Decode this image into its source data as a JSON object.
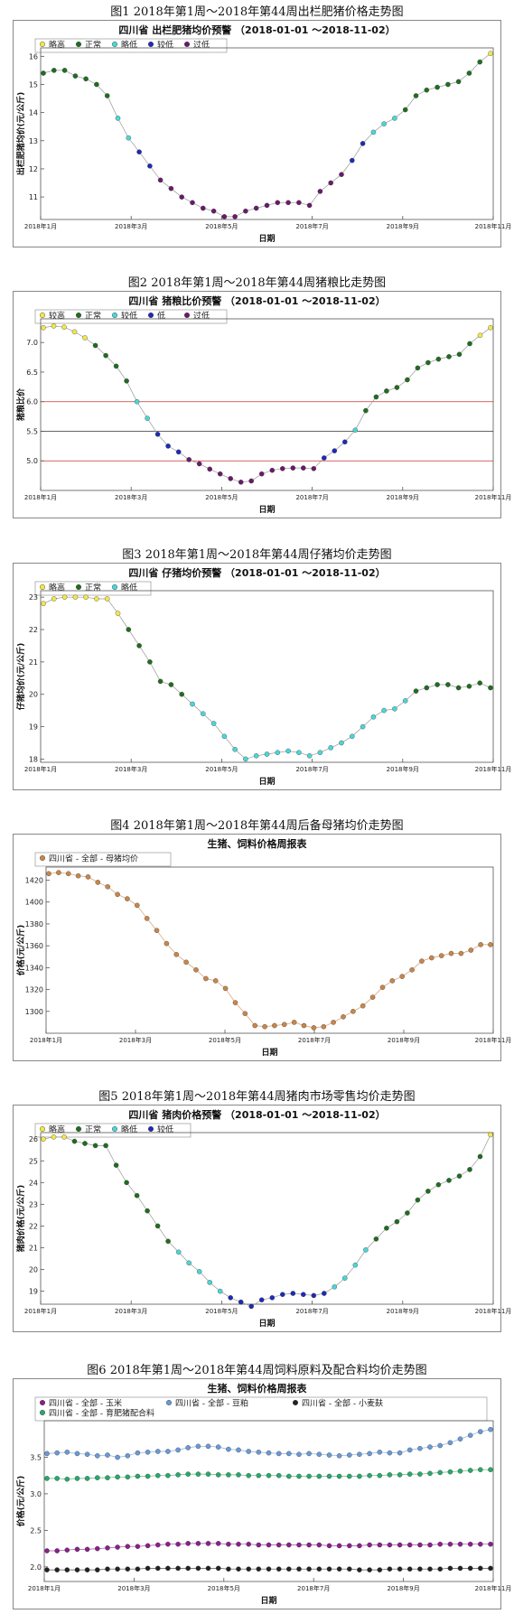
{
  "charts": [
    {
      "caption": "图1  2018年第1周～2018年第44周出栏肥猪价格走势图",
      "title": "四川省 出栏肥猪均价预警 （2018-01-01 ～2018-11-02）",
      "ylabel": "出栏肥猪均价(元/公斤)",
      "xlabel": "日期",
      "xticks": [
        "2018年1月",
        "2018年3月",
        "2018年5月",
        "2018年7月",
        "2018年9月",
        "2018年11月"
      ],
      "yticks": [
        "11",
        "12",
        "13",
        "14",
        "15",
        "16"
      ],
      "legend": [
        {
          "name": "略高",
          "color": "#f2e84a"
        },
        {
          "name": "正常",
          "color": "#1f6e1f"
        },
        {
          "name": "略低",
          "color": "#4ad6d6"
        },
        {
          "name": "较低",
          "color": "#1f2ab8"
        },
        {
          "name": "过低",
          "color": "#6a1a6a"
        }
      ]
    },
    {
      "caption": "图2  2018年第1周～2018年第44周猪粮比走势图",
      "title": "四川省 猪粮比价预警 （2018-01-01 ～2018-11-02）",
      "ylabel": "猪粮比价",
      "xlabel": "日期",
      "xticks": [
        "2018年1月",
        "2018年3月",
        "2018年5月",
        "2018年7月",
        "2018年9月",
        "2018年11月"
      ],
      "yticks": [
        "5.0",
        "5.5",
        "6.0",
        "6.5",
        "7.0"
      ],
      "legend": [
        {
          "name": "较高",
          "color": "#f2e84a"
        },
        {
          "name": "正常",
          "color": "#1f6e1f"
        },
        {
          "name": "较低",
          "color": "#4ad6d6"
        },
        {
          "name": "低",
          "color": "#1f2ab8"
        },
        {
          "name": "过低",
          "color": "#6a1a6a"
        }
      ]
    },
    {
      "caption": "图3  2018年第1周～2018年第44周仔猪均价走势图",
      "title": "四川省 仔猪均价预警 （2018-01-01 ～2018-11-02）",
      "ylabel": "仔猪均价(元/公斤)",
      "xlabel": "日期",
      "xticks": [
        "2018年1月",
        "2018年3月",
        "2018年5月",
        "2018年7月",
        "2018年9月",
        "2018年11月"
      ],
      "yticks": [
        "18",
        "19",
        "20",
        "21",
        "22",
        "23"
      ],
      "legend": [
        {
          "name": "略高",
          "color": "#f2e84a"
        },
        {
          "name": "正常",
          "color": "#1f6e1f"
        },
        {
          "name": "略低",
          "color": "#4ad6d6"
        }
      ]
    },
    {
      "caption": "图4  2018年第1周～2018年第44周后备母猪均价走势图",
      "title": "生猪、饲料价格周报表",
      "ylabel": "价格(元/公斤)",
      "xlabel": "日期",
      "xticks": [
        "2018年1月",
        "2018年3月",
        "2018年5月",
        "2018年7月",
        "2018年9月",
        "2018年11月"
      ],
      "yticks": [
        "1300",
        "1320",
        "1340",
        "1360",
        "1380",
        "1400",
        "1420"
      ],
      "legend": [
        {
          "name": "四川省 - 全部 - 母猪均价",
          "color": "#c8864a"
        }
      ]
    },
    {
      "caption": "图5  2018年第1周～2018年第44周猪肉市场零售均价走势图",
      "title": "四川省 猪肉价格预警 （2018-01-01 ～2018-11-02）",
      "ylabel": "猪肉价格(元/公斤)",
      "xlabel": "日期",
      "xticks": [
        "2018年1月",
        "2018年3月",
        "2018年5月",
        "2018年7月",
        "2018年9月",
        "2018年11月"
      ],
      "yticks": [
        "19",
        "20",
        "21",
        "22",
        "23",
        "24",
        "25",
        "26"
      ],
      "legend": [
        {
          "name": "略高",
          "color": "#f2e84a"
        },
        {
          "name": "正常",
          "color": "#1f6e1f"
        },
        {
          "name": "略低",
          "color": "#4ad6d6"
        },
        {
          "name": "较低",
          "color": "#1f2ab8"
        }
      ]
    },
    {
      "caption": "图6  2018年第1周～2018年第44周饲料原料及配合料均价走势图",
      "title": "生猪、饲料价格周报表",
      "ylabel": "价格(元/公斤)",
      "xlabel": "日期",
      "xticks": [
        "2018年1月",
        "2018年3月",
        "2018年5月",
        "2018年7月",
        "2018年9月",
        "2018年11月"
      ],
      "yticks": [
        "2.0",
        "2.5",
        "3.0",
        "3.5"
      ],
      "legend": [
        {
          "name": "四川省 - 全部 - 玉米",
          "color": "#8a1f8a"
        },
        {
          "name": "四川省 - 全部 - 豆粕",
          "color": "#6a9ad6"
        },
        {
          "name": "四川省 - 全部 - 小麦麸",
          "color": "#222222"
        },
        {
          "name": "四川省 - 全部 - 育肥猪配合料",
          "color": "#2aa86a"
        }
      ]
    }
  ],
  "chart_data": [
    {
      "type": "scatter",
      "ylim": [
        10.2,
        16.3
      ],
      "y": [
        15.4,
        15.5,
        15.5,
        15.3,
        15.2,
        15.0,
        14.6,
        13.8,
        13.1,
        12.6,
        12.1,
        11.6,
        11.3,
        11.0,
        10.8,
        10.6,
        10.5,
        10.3,
        10.3,
        10.5,
        10.6,
        10.7,
        10.8,
        10.8,
        10.8,
        10.7,
        11.2,
        11.5,
        11.8,
        12.3,
        12.9,
        13.3,
        13.6,
        13.8,
        14.1,
        14.6,
        14.8,
        14.9,
        15.0,
        15.1,
        15.4,
        15.8,
        16.1
      ],
      "levels": [
        "g",
        "g",
        "g",
        "g",
        "g",
        "g",
        "g",
        "c",
        "c",
        "b",
        "b",
        "p",
        "p",
        "p",
        "p",
        "p",
        "p",
        "p",
        "p",
        "p",
        "p",
        "p",
        "p",
        "p",
        "p",
        "p",
        "p",
        "p",
        "p",
        "b",
        "b",
        "c",
        "c",
        "c",
        "g",
        "g",
        "g",
        "g",
        "g",
        "g",
        "g",
        "g",
        "y"
      ]
    },
    {
      "type": "scatter",
      "ylim": [
        4.5,
        7.4
      ],
      "reference_lines": [
        {
          "y": 6.0,
          "color": "#cc3333"
        },
        {
          "y": 5.5,
          "color": "#333333"
        },
        {
          "y": 5.0,
          "color": "#cc3333"
        }
      ],
      "y": [
        7.25,
        7.28,
        7.26,
        7.18,
        7.08,
        6.95,
        6.78,
        6.6,
        6.35,
        6.0,
        5.72,
        5.45,
        5.25,
        5.15,
        5.02,
        4.95,
        4.86,
        4.78,
        4.7,
        4.64,
        4.66,
        4.78,
        4.84,
        4.87,
        4.88,
        4.88,
        4.87,
        5.05,
        5.17,
        5.32,
        5.52,
        5.85,
        6.08,
        6.18,
        6.24,
        6.37,
        6.57,
        6.66,
        6.72,
        6.76,
        6.8,
        6.98,
        7.12,
        7.25
      ],
      "levels": [
        "y",
        "y",
        "y",
        "y",
        "y",
        "g",
        "g",
        "g",
        "g",
        "c",
        "c",
        "b",
        "b",
        "b",
        "p",
        "p",
        "p",
        "p",
        "p",
        "p",
        "p",
        "p",
        "p",
        "p",
        "p",
        "p",
        "p",
        "b",
        "b",
        "b",
        "c",
        "g",
        "g",
        "g",
        "g",
        "g",
        "g",
        "g",
        "g",
        "g",
        "g",
        "g",
        "y",
        "y"
      ]
    },
    {
      "type": "scatter",
      "ylim": [
        17.9,
        23.2
      ],
      "y": [
        22.8,
        22.95,
        23.0,
        23.0,
        23.0,
        22.95,
        22.95,
        22.5,
        22.0,
        21.5,
        21.0,
        20.4,
        20.3,
        20.0,
        19.7,
        19.4,
        19.1,
        18.7,
        18.3,
        18.0,
        18.1,
        18.15,
        18.2,
        18.25,
        18.2,
        18.1,
        18.2,
        18.35,
        18.5,
        18.7,
        19.0,
        19.3,
        19.5,
        19.55,
        19.8,
        20.1,
        20.2,
        20.3,
        20.3,
        20.2,
        20.25,
        20.35,
        20.2
      ],
      "levels": [
        "y",
        "y",
        "y",
        "y",
        "y",
        "y",
        "y",
        "y",
        "g",
        "g",
        "g",
        "g",
        "g",
        "g",
        "c",
        "c",
        "c",
        "c",
        "c",
        "c",
        "c",
        "c",
        "c",
        "c",
        "c",
        "c",
        "c",
        "c",
        "c",
        "c",
        "c",
        "c",
        "c",
        "c",
        "c",
        "g",
        "g",
        "g",
        "g",
        "g",
        "g",
        "g",
        "g"
      ]
    },
    {
      "type": "scatter",
      "ylim": [
        1280,
        1432
      ],
      "series": [
        {
          "name": "四川省 - 全部 - 母猪均价",
          "y": [
            1426,
            1427,
            1426,
            1424,
            1423,
            1418,
            1414,
            1407,
            1403,
            1397,
            1385,
            1374,
            1362,
            1352,
            1345,
            1338,
            1330,
            1328,
            1321,
            1308,
            1298,
            1287,
            1286,
            1287,
            1288,
            1290,
            1287,
            1285,
            1286,
            1290,
            1295,
            1300,
            1305,
            1313,
            1322,
            1328,
            1332,
            1338,
            1346,
            1349,
            1351,
            1353,
            1353,
            1356,
            1361,
            1361
          ]
        }
      ]
    },
    {
      "type": "scatter",
      "ylim": [
        18.4,
        26.3
      ],
      "y": [
        26.0,
        26.1,
        26.1,
        25.9,
        25.8,
        25.7,
        25.7,
        24.8,
        24.0,
        23.4,
        22.7,
        22.0,
        21.3,
        20.8,
        20.3,
        19.9,
        19.4,
        19.0,
        18.7,
        18.5,
        18.3,
        18.6,
        18.7,
        18.85,
        18.9,
        18.85,
        18.8,
        18.9,
        19.2,
        19.6,
        20.2,
        20.9,
        21.4,
        21.9,
        22.2,
        22.6,
        23.2,
        23.6,
        23.9,
        24.1,
        24.3,
        24.6,
        25.2,
        26.2
      ],
      "levels": [
        "y",
        "y",
        "y",
        "g",
        "g",
        "g",
        "g",
        "g",
        "g",
        "g",
        "g",
        "g",
        "g",
        "c",
        "c",
        "c",
        "c",
        "c",
        "b",
        "b",
        "b",
        "b",
        "b",
        "b",
        "b",
        "b",
        "b",
        "b",
        "c",
        "c",
        "c",
        "c",
        "g",
        "g",
        "g",
        "g",
        "g",
        "g",
        "g",
        "g",
        "g",
        "g",
        "g",
        "y"
      ]
    },
    {
      "type": "scatter",
      "ylim": [
        1.8,
        4.0
      ],
      "series": [
        {
          "name": "四川省 - 全部 - 豆粕",
          "y": [
            3.55,
            3.56,
            3.57,
            3.55,
            3.54,
            3.52,
            3.53,
            3.5,
            3.52,
            3.56,
            3.57,
            3.58,
            3.58,
            3.6,
            3.63,
            3.65,
            3.65,
            3.64,
            3.61,
            3.6,
            3.58,
            3.57,
            3.56,
            3.55,
            3.55,
            3.54,
            3.55,
            3.54,
            3.53,
            3.52,
            3.53,
            3.54,
            3.55,
            3.57,
            3.56,
            3.56,
            3.6,
            3.62,
            3.64,
            3.66,
            3.7,
            3.75,
            3.8,
            3.85,
            3.88
          ]
        },
        {
          "name": "四川省 - 全部 - 育肥猪配合料",
          "y": [
            3.21,
            3.21,
            3.2,
            3.21,
            3.21,
            3.22,
            3.22,
            3.23,
            3.23,
            3.24,
            3.24,
            3.25,
            3.25,
            3.26,
            3.27,
            3.27,
            3.27,
            3.26,
            3.26,
            3.26,
            3.25,
            3.25,
            3.25,
            3.25,
            3.24,
            3.24,
            3.24,
            3.24,
            3.24,
            3.24,
            3.24,
            3.24,
            3.25,
            3.25,
            3.26,
            3.26,
            3.27,
            3.27,
            3.28,
            3.29,
            3.3,
            3.31,
            3.32,
            3.33,
            3.33
          ]
        },
        {
          "name": "四川省 - 全部 - 玉米",
          "y": [
            2.22,
            2.22,
            2.23,
            2.24,
            2.24,
            2.25,
            2.26,
            2.27,
            2.28,
            2.28,
            2.29,
            2.3,
            2.31,
            2.31,
            2.32,
            2.32,
            2.32,
            2.32,
            2.31,
            2.31,
            2.31,
            2.3,
            2.3,
            2.3,
            2.3,
            2.3,
            2.3,
            2.3,
            2.29,
            2.29,
            2.29,
            2.29,
            2.3,
            2.3,
            2.3,
            2.3,
            2.3,
            2.3,
            2.3,
            2.31,
            2.31,
            2.31,
            2.31,
            2.31,
            2.31
          ]
        },
        {
          "name": "四川省 - 全部 - 小麦麸",
          "y": [
            1.96,
            1.96,
            1.96,
            1.96,
            1.96,
            1.96,
            1.97,
            1.97,
            1.97,
            1.97,
            1.98,
            1.98,
            1.98,
            1.98,
            1.98,
            1.98,
            1.98,
            1.98,
            1.97,
            1.97,
            1.97,
            1.97,
            1.97,
            1.97,
            1.97,
            1.97,
            1.97,
            1.97,
            1.97,
            1.97,
            1.97,
            1.96,
            1.96,
            1.96,
            1.97,
            1.97,
            1.97,
            1.97,
            1.97,
            1.97,
            1.98,
            1.98,
            1.98,
            1.98,
            1.98
          ]
        }
      ]
    }
  ]
}
